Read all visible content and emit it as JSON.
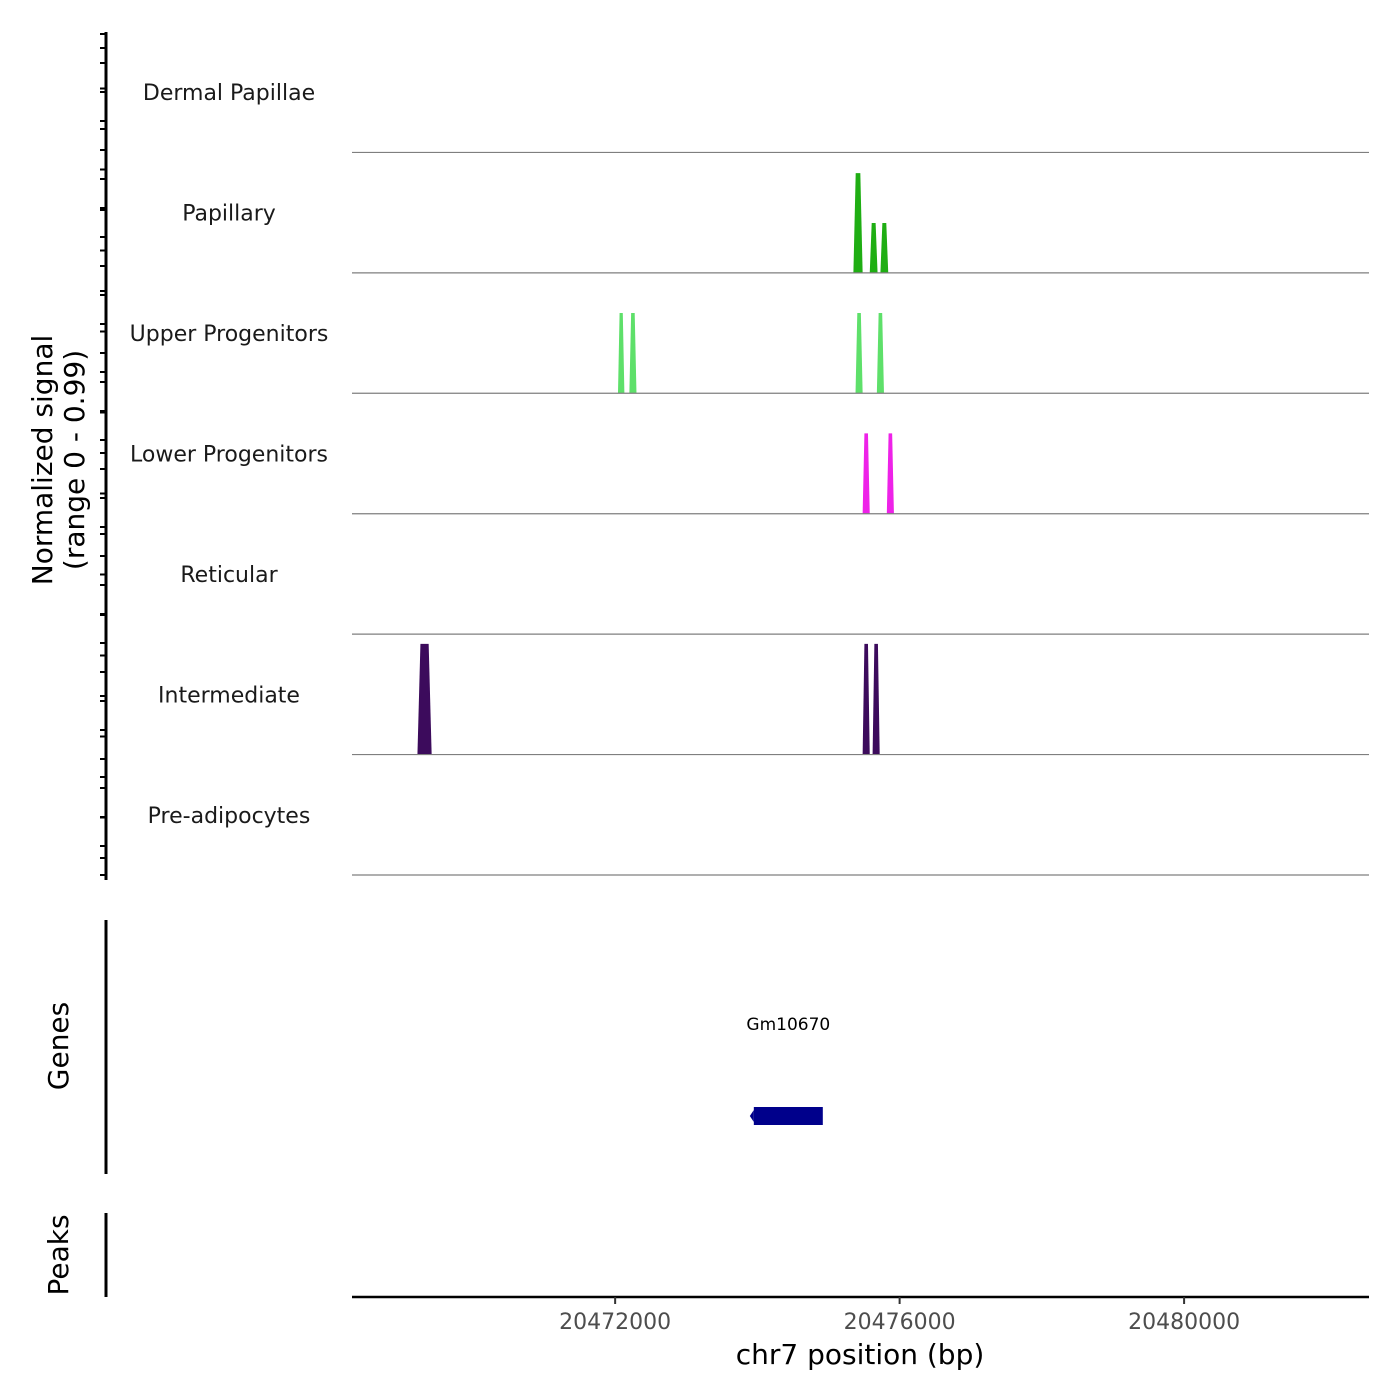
{
  "chart_data": {
    "type": "area",
    "title": "",
    "xlabel": "chr7 position (bp)",
    "ylabel_line1": "Normalized signal",
    "ylabel_line2": "(range 0 - 0.99)",
    "xlim": [
      20468300,
      20482600
    ],
    "xticks": [
      {
        "value": 20472000,
        "label": "20472000"
      },
      {
        "value": 20476000,
        "label": "20476000"
      },
      {
        "value": 20480000,
        "label": "20480000"
      }
    ],
    "signal_range": [
      0,
      0.99
    ],
    "series": [
      {
        "name": "Dermal Papillae",
        "color": "#1aa11a",
        "peaks": []
      },
      {
        "name": "Papillary",
        "color": "#1fae13",
        "peaks": [
          {
            "start": 20475350,
            "end": 20475480,
            "value": 0.82
          },
          {
            "start": 20475580,
            "end": 20475690,
            "value": 0.41
          },
          {
            "start": 20475730,
            "end": 20475840,
            "value": 0.41
          }
        ]
      },
      {
        "name": "Upper Progenitors",
        "color": "#5ee06a",
        "peaks": [
          {
            "start": 20472040,
            "end": 20472130,
            "value": 0.66
          },
          {
            "start": 20472200,
            "end": 20472300,
            "value": 0.66
          },
          {
            "start": 20475380,
            "end": 20475480,
            "value": 0.66
          },
          {
            "start": 20475680,
            "end": 20475780,
            "value": 0.66
          }
        ]
      },
      {
        "name": "Lower Progenitors",
        "color": "#ee22e8",
        "peaks": [
          {
            "start": 20475480,
            "end": 20475580,
            "value": 0.66
          },
          {
            "start": 20475820,
            "end": 20475920,
            "value": 0.66
          }
        ]
      },
      {
        "name": "Reticular",
        "color": "#888888",
        "peaks": []
      },
      {
        "name": "Intermediate",
        "color": "#3c0b5c",
        "peaks": [
          {
            "start": 20469220,
            "end": 20469420,
            "value": 0.91
          },
          {
            "start": 20475480,
            "end": 20475580,
            "value": 0.91
          },
          {
            "start": 20475620,
            "end": 20475720,
            "value": 0.91
          }
        ]
      },
      {
        "name": "Pre-adipocytes",
        "color": "#888888",
        "peaks": []
      }
    ],
    "genes_track": {
      "title": "Genes",
      "genes": [
        {
          "name": "Gm10670",
          "start": 20473950,
          "end": 20474920,
          "strand": "-",
          "color": "#00008b"
        }
      ]
    },
    "peaks_track": {
      "title": "Peaks",
      "peaks": []
    }
  }
}
